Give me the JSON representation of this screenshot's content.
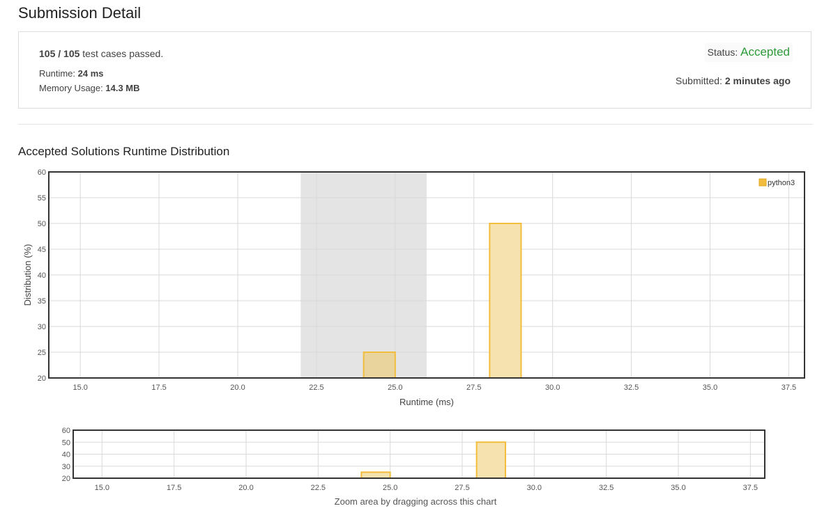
{
  "header": {
    "title": "Submission Detail"
  },
  "result": {
    "passed": "105 / 105",
    "passed_suffix": "test cases passed.",
    "runtime_label": "Runtime:",
    "runtime_value": "24 ms",
    "memory_label": "Memory Usage:",
    "memory_value": "14.3 MB",
    "status_label": "Status:",
    "status_value": "Accepted",
    "submitted_label": "Submitted:",
    "submitted_value": "2 minutes ago"
  },
  "colors": {
    "accepted": "#2e9a3a",
    "bar_fill": "#f6e2ae",
    "bar_stroke": "#f2bd3c",
    "highlight_band": "#e4e4e4",
    "legend_swatch": "#f2bd3c"
  },
  "chart": {
    "title": "Accepted Solutions Runtime Distribution",
    "zoom_hint": "Zoom area by dragging across this chart"
  },
  "chart_data": {
    "type": "bar",
    "title": "Accepted Solutions Runtime Distribution",
    "xlabel": "Runtime (ms)",
    "ylabel": "Distribution (%)",
    "xlim": [
      14,
      38
    ],
    "ylim": [
      20,
      60
    ],
    "x_ticks": [
      "15.0",
      "17.5",
      "20.0",
      "22.5",
      "25.0",
      "27.5",
      "30.0",
      "32.5",
      "35.0",
      "37.5"
    ],
    "y_ticks": [
      "60",
      "55",
      "50",
      "45",
      "40",
      "35",
      "30",
      "25",
      "20"
    ],
    "nav_y_ticks": [
      "60",
      "50",
      "40",
      "30",
      "20"
    ],
    "series": [
      {
        "name": "python3",
        "bars": [
          {
            "x0": 24,
            "x1": 25,
            "value": 25
          },
          {
            "x0": 28,
            "x1": 29,
            "value": 50
          }
        ]
      }
    ],
    "highlight_range": [
      22,
      26
    ],
    "grid": true,
    "legend_position": "top-right"
  }
}
